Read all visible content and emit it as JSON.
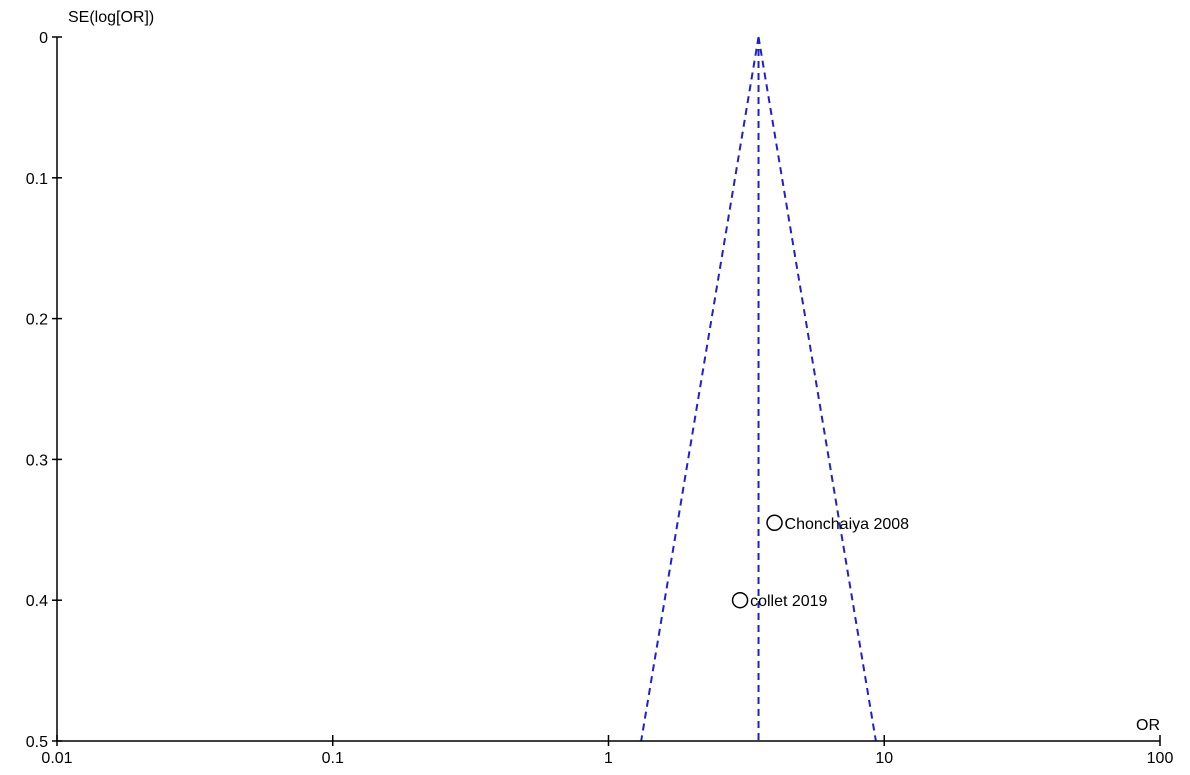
{
  "chart_data": {
    "type": "scatter",
    "xlabel": "OR",
    "ylabel": "SE(log[OR])",
    "x_scale": "log",
    "xlim": [
      0.01,
      100
    ],
    "ylim": [
      0,
      0.5
    ],
    "y_inverted": true,
    "grid": false,
    "x_ticks": [
      {
        "value": 0.01,
        "label": "0.01"
      },
      {
        "value": 0.1,
        "label": "0.1"
      },
      {
        "value": 1,
        "label": "1"
      },
      {
        "value": 10,
        "label": "10"
      },
      {
        "value": 100,
        "label": "100"
      }
    ],
    "y_ticks": [
      {
        "value": 0,
        "label": "0"
      },
      {
        "value": 0.1,
        "label": "0.1"
      },
      {
        "value": 0.2,
        "label": "0.2"
      },
      {
        "value": 0.3,
        "label": "0.3"
      },
      {
        "value": 0.4,
        "label": "0.4"
      },
      {
        "value": 0.5,
        "label": "0.5"
      }
    ],
    "points": [
      {
        "label": "Chonchaiya  2008",
        "or": 4.0,
        "se": 0.345
      },
      {
        "label": "collet 2019",
        "or": 3.0,
        "se": 0.4
      }
    ],
    "pooled_or": 3.5,
    "funnel": {
      "apex_se": 0,
      "base_se": 0.5,
      "color": "#2020cc",
      "style": "dashed"
    },
    "marker_color": "#000000"
  }
}
